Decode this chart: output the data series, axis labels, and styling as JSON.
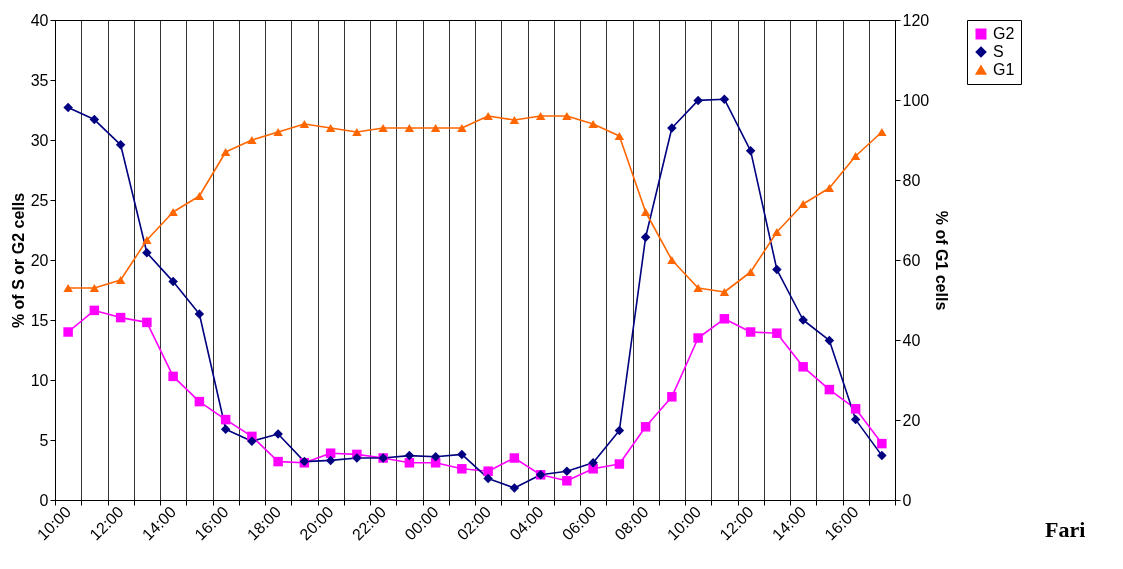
{
  "chart_data": {
    "type": "line",
    "categories": [
      "10:00",
      null,
      "12:00",
      null,
      "14:00",
      null,
      "16:00",
      null,
      "18:00",
      null,
      "20:00",
      null,
      "22:00",
      null,
      "00:00",
      null,
      "02:00",
      null,
      "04:00",
      null,
      "06:00",
      null,
      "08:00",
      null,
      "10:00",
      null,
      "12:00",
      null,
      "14:00",
      null,
      "16:00",
      null
    ],
    "series": [
      {
        "name": "G2",
        "color": "#ff00ff",
        "marker": "square",
        "values": [
          14.0,
          15.8,
          15.2,
          14.8,
          10.3,
          8.2,
          6.7,
          5.3,
          3.2,
          3.1,
          3.9,
          3.8,
          3.5,
          3.1,
          3.1,
          2.6,
          2.4,
          3.5,
          2.1,
          1.6,
          2.6,
          3.0,
          6.1,
          8.6,
          13.5,
          15.1,
          14.0,
          13.9,
          11.1,
          9.2,
          7.6,
          4.7
        ]
      },
      {
        "name": "S",
        "color": "#000080",
        "marker": "diamond",
        "values": [
          32.7,
          31.7,
          29.6,
          20.6,
          18.2,
          15.5,
          5.9,
          4.9,
          5.5,
          3.2,
          3.3,
          3.5,
          3.5,
          3.7,
          3.6,
          3.8,
          1.8,
          1.0,
          2.1,
          2.4,
          3.1,
          5.8,
          21.9,
          31.0,
          33.3,
          33.4,
          29.1,
          19.2,
          15.0,
          13.3,
          6.7,
          3.7
        ]
      },
      {
        "name": "G1",
        "color": "#ff6600",
        "marker": "triangle",
        "axis": "y2",
        "values": [
          53,
          53,
          55,
          65,
          72,
          76,
          87,
          90,
          92,
          94,
          93,
          92,
          93,
          93,
          93,
          93,
          96,
          95,
          96,
          96,
          94,
          91,
          72,
          60,
          53,
          52,
          57,
          67,
          74,
          78,
          86,
          92
        ]
      }
    ],
    "ylabel": "% of S or G2 cells",
    "y2label": "% of G1 cells",
    "ylim": [
      0,
      40
    ],
    "yticks": [
      0,
      5,
      10,
      15,
      20,
      25,
      30,
      35,
      40
    ],
    "y2lim": [
      0,
      120
    ],
    "y2ticks": [
      0,
      20,
      40,
      60,
      80,
      100,
      120
    ],
    "grid": "x",
    "legend": "right",
    "line_style": "solid",
    "annotations": [
      "Fari"
    ]
  }
}
